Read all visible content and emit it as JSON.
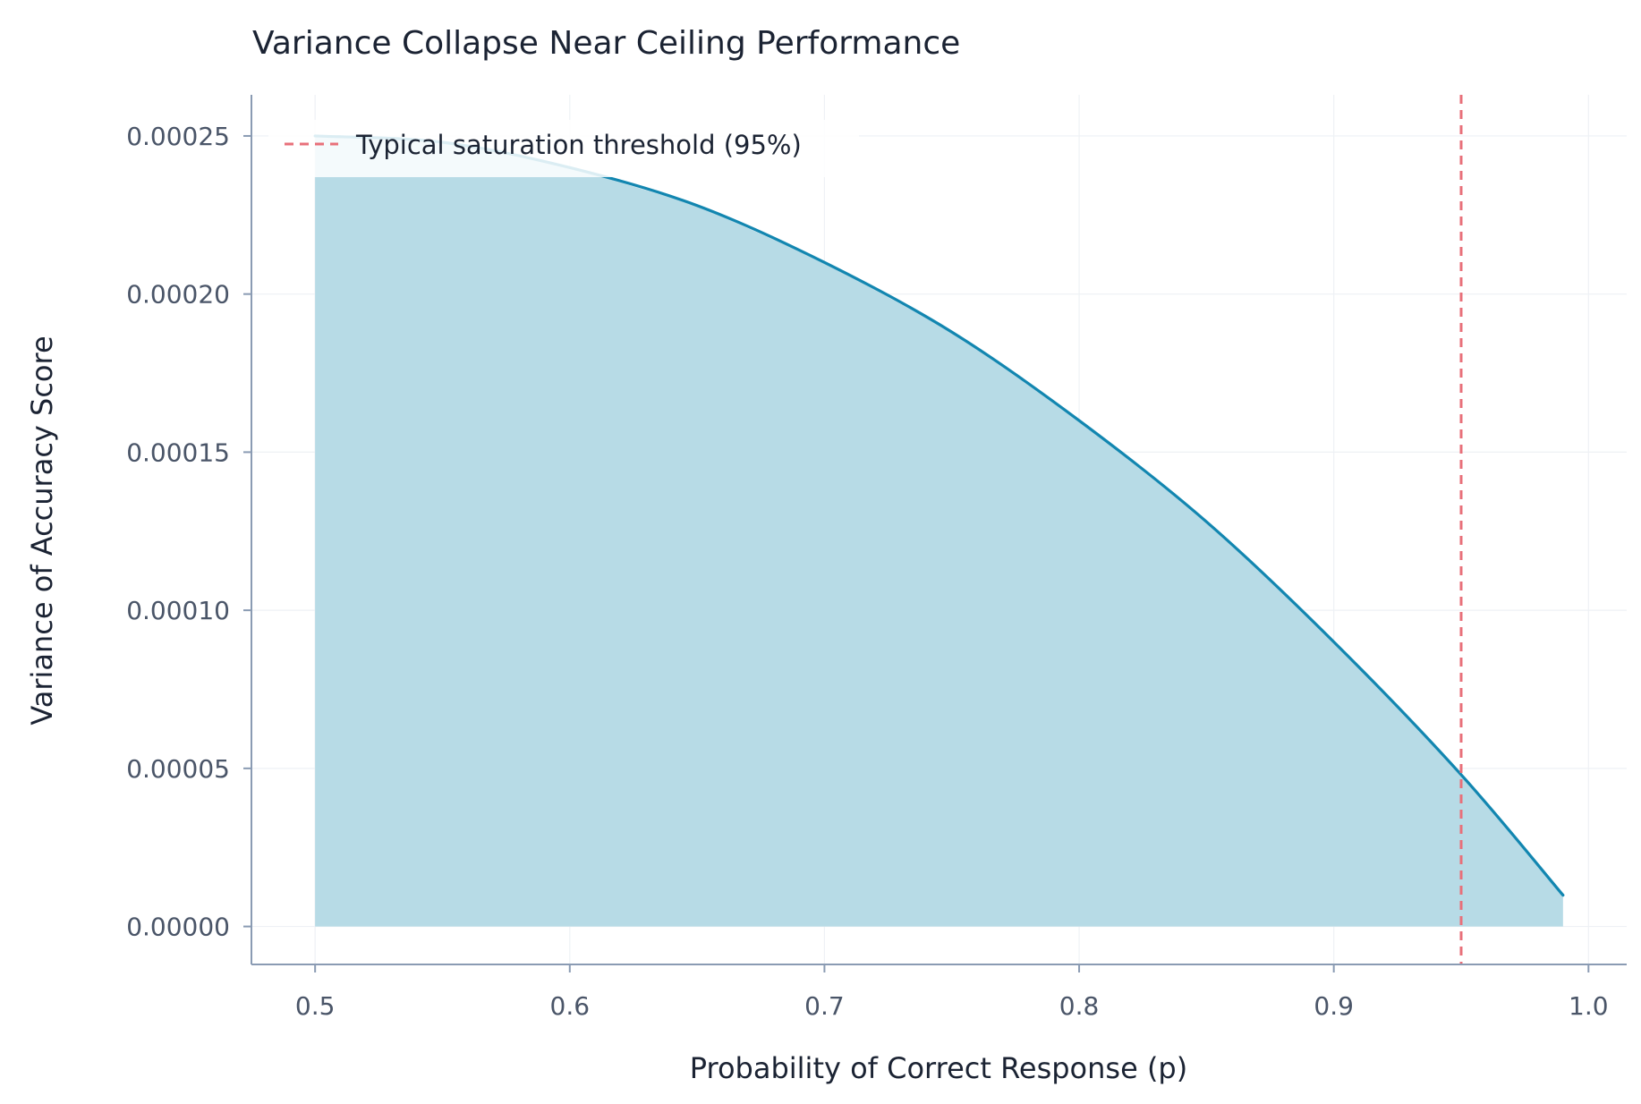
{
  "chart_data": {
    "type": "area",
    "title": "Variance Collapse Near Ceiling Performance",
    "xlabel": "Probability of Correct Response (p)",
    "ylabel": "Variance of Accuracy Score",
    "xlim": [
      0.475,
      1.015
    ],
    "ylim": [
      -1.2e-05,
      0.000263
    ],
    "x_ticks": [
      0.5,
      0.6,
      0.7,
      0.8,
      0.9,
      1.0
    ],
    "x_tick_labels": [
      "0.5",
      "0.6",
      "0.7",
      "0.8",
      "0.9",
      "1.0"
    ],
    "y_ticks": [
      0,
      5e-05,
      0.0001,
      0.00015,
      0.0002,
      0.00025
    ],
    "y_tick_labels": [
      "0.00000",
      "0.00005",
      "0.00010",
      "0.00015",
      "0.00020",
      "0.00025"
    ],
    "grid": true,
    "legend_position": "top-left",
    "series": [
      {
        "kind": "line-with-fill",
        "color": "#1286b0",
        "fill_color": "#b7dbe6",
        "x": [
          0.5,
          0.55,
          0.6,
          0.65,
          0.7,
          0.75,
          0.8,
          0.85,
          0.9,
          0.95,
          0.99
        ],
        "values": [
          0.00025,
          0.000248,
          0.00024,
          0.000228,
          0.00021,
          0.000188,
          0.00016,
          0.000128,
          9e-05,
          4.8e-05,
          9.9e-06
        ]
      }
    ],
    "reference_line": {
      "axis": "x",
      "value": 0.95,
      "style": "dashed",
      "color": "#e8707a",
      "label": "Typical saturation threshold (95%)"
    }
  }
}
